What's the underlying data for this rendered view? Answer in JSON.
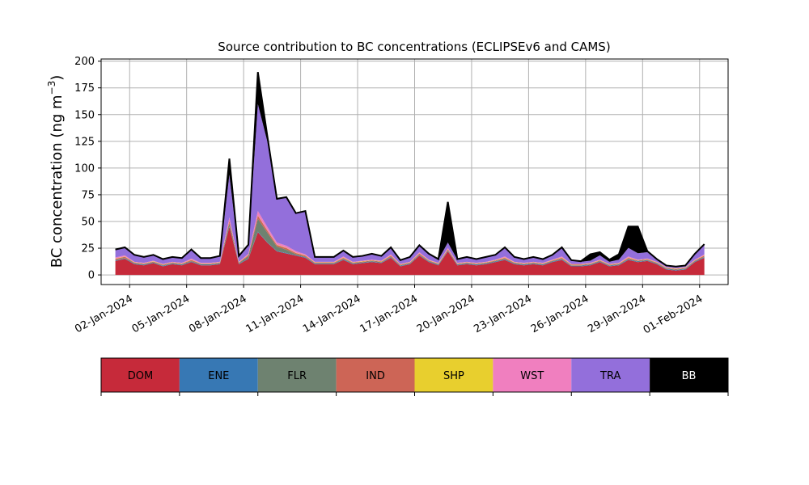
{
  "chart_data": {
    "type": "area",
    "stacked": true,
    "title": "Source contribution to BC concentrations (ECLIPSEv6 and CAMS)",
    "ylabel": "BC concentration (ng m",
    "ylabel_sup": "−3",
    "ylabel_close": ")",
    "xlabel": "",
    "ylim": [
      -9,
      202
    ],
    "xlim": [
      "2023-12-31T12:00",
      "2024-02-02T12:00"
    ],
    "grid": true,
    "yticks": [
      0,
      25,
      50,
      75,
      100,
      125,
      150,
      175,
      200
    ],
    "xticks": [
      {
        "date": "2024-01-02",
        "label": "02-Jan-2024"
      },
      {
        "date": "2024-01-05",
        "label": "05-Jan-2024"
      },
      {
        "date": "2024-01-08",
        "label": "08-Jan-2024"
      },
      {
        "date": "2024-01-11",
        "label": "11-Jan-2024"
      },
      {
        "date": "2024-01-14",
        "label": "14-Jan-2024"
      },
      {
        "date": "2024-01-17",
        "label": "17-Jan-2024"
      },
      {
        "date": "2024-01-20",
        "label": "20-Jan-2024"
      },
      {
        "date": "2024-01-23",
        "label": "23-Jan-2024"
      },
      {
        "date": "2024-01-26",
        "label": "26-Jan-2024"
      },
      {
        "date": "2024-01-29",
        "label": "29-Jan-2024"
      },
      {
        "date": "2024-02-01",
        "label": "01-Feb-2024"
      }
    ],
    "x": [
      "2024-01-01T06:00",
      "2024-01-01T18:00",
      "2024-01-02T06:00",
      "2024-01-02T18:00",
      "2024-01-03T06:00",
      "2024-01-03T18:00",
      "2024-01-04T06:00",
      "2024-01-04T18:00",
      "2024-01-05T06:00",
      "2024-01-05T18:00",
      "2024-01-06T06:00",
      "2024-01-06T18:00",
      "2024-01-07T06:00",
      "2024-01-07T18:00",
      "2024-01-08T06:00",
      "2024-01-08T18:00",
      "2024-01-09T06:00",
      "2024-01-09T18:00",
      "2024-01-10T06:00",
      "2024-01-10T18:00",
      "2024-01-11T06:00",
      "2024-01-11T18:00",
      "2024-01-12T06:00",
      "2024-01-12T18:00",
      "2024-01-13T06:00",
      "2024-01-13T18:00",
      "2024-01-14T06:00",
      "2024-01-14T18:00",
      "2024-01-15T06:00",
      "2024-01-15T18:00",
      "2024-01-16T06:00",
      "2024-01-16T18:00",
      "2024-01-17T06:00",
      "2024-01-17T18:00",
      "2024-01-18T06:00",
      "2024-01-18T18:00",
      "2024-01-19T06:00",
      "2024-01-19T18:00",
      "2024-01-20T06:00",
      "2024-01-20T18:00",
      "2024-01-21T06:00",
      "2024-01-21T18:00",
      "2024-01-22T06:00",
      "2024-01-22T18:00",
      "2024-01-23T06:00",
      "2024-01-23T18:00",
      "2024-01-24T06:00",
      "2024-01-24T18:00",
      "2024-01-25T06:00",
      "2024-01-25T18:00",
      "2024-01-26T06:00",
      "2024-01-26T18:00",
      "2024-01-27T06:00",
      "2024-01-27T18:00",
      "2024-01-28T06:00",
      "2024-01-28T18:00",
      "2024-01-29T06:00",
      "2024-01-29T18:00",
      "2024-01-30T06:00",
      "2024-01-30T18:00",
      "2024-01-31T06:00",
      "2024-01-31T18:00",
      "2024-02-01T06:00"
    ],
    "series": [
      {
        "name": "DOM",
        "color": "#c62a3a",
        "values": [
          13,
          15,
          10,
          9,
          11,
          8,
          10,
          9,
          12,
          9,
          9,
          10,
          45,
          10,
          15,
          40,
          30,
          22,
          20,
          18,
          16,
          10,
          10,
          10,
          14,
          10,
          11,
          12,
          11,
          16,
          8,
          10,
          18,
          12,
          9,
          22,
          9,
          10,
          9,
          10,
          12,
          14,
          10,
          9,
          10,
          9,
          12,
          14,
          8,
          8,
          9,
          12,
          8,
          9,
          14,
          12,
          13,
          10,
          5,
          4,
          5,
          12,
          16
        ]
      },
      {
        "name": "ENE",
        "color": "#3778b4",
        "values": [
          0.5,
          0.5,
          0.5,
          0.5,
          0.5,
          0.5,
          0.5,
          0.5,
          0.5,
          0.5,
          0.5,
          0.5,
          0.5,
          0.5,
          0.5,
          0.5,
          0.5,
          0.5,
          0.5,
          0.5,
          0.5,
          0.5,
          0.5,
          0.5,
          0.5,
          0.5,
          0.5,
          0.5,
          0.5,
          0.5,
          0.5,
          0.5,
          0.5,
          0.5,
          0.5,
          0.5,
          0.5,
          0.5,
          0.5,
          0.5,
          0.5,
          0.5,
          0.5,
          0.5,
          0.5,
          0.5,
          0.5,
          0.5,
          0.5,
          0.5,
          0.5,
          0.5,
          0.5,
          0.5,
          0.5,
          0.5,
          0.5,
          0.5,
          0.5,
          0.5,
          0.5,
          0.5,
          0.5
        ]
      },
      {
        "name": "FLR",
        "color": "#6e8270",
        "values": [
          0.5,
          0.5,
          0.5,
          0.5,
          0.5,
          0.5,
          0.5,
          0.5,
          0.5,
          0.5,
          0.5,
          0.5,
          3,
          0.5,
          2,
          12,
          9,
          4,
          3,
          1,
          0.5,
          0.5,
          0.5,
          0.5,
          0.5,
          0.5,
          0.5,
          0.5,
          0.5,
          0.5,
          0.5,
          0.5,
          0.5,
          0.5,
          0.5,
          0.5,
          0.5,
          0.5,
          0.5,
          0.5,
          0.5,
          0.5,
          0.5,
          0.5,
          0.5,
          0.5,
          0.5,
          0.5,
          0.5,
          0.5,
          0.5,
          0.5,
          0.5,
          0.5,
          0.5,
          0.5,
          0.5,
          0.5,
          0.5,
          0.5,
          0.5,
          0.5,
          0.5
        ]
      },
      {
        "name": "IND",
        "color": "#cd6556",
        "values": [
          1,
          1,
          0.5,
          0.5,
          0.5,
          0.5,
          0.5,
          0.5,
          1,
          0.5,
          0.5,
          0.5,
          2,
          0.5,
          1,
          3,
          2,
          1.5,
          1.5,
          1,
          1,
          0.5,
          0.5,
          0.5,
          1,
          0.5,
          0.5,
          0.5,
          0.5,
          1,
          0.5,
          0.5,
          1,
          0.5,
          0.5,
          1,
          0.5,
          0.5,
          0.5,
          0.5,
          0.5,
          1,
          0.5,
          0.5,
          0.5,
          0.5,
          0.5,
          1,
          0.5,
          0.5,
          0.5,
          0.5,
          0.5,
          0.5,
          1,
          0.5,
          0.5,
          0.5,
          0.5,
          0.5,
          0.5,
          0.5,
          1
        ]
      },
      {
        "name": "SHP",
        "color": "#e8cf2e",
        "values": [
          0.3,
          0.3,
          0.3,
          0.3,
          0.3,
          0.3,
          0.3,
          0.3,
          0.3,
          0.3,
          0.3,
          0.3,
          0.3,
          0.3,
          0.3,
          0.3,
          0.3,
          0.3,
          0.3,
          0.3,
          0.3,
          0.3,
          0.3,
          0.3,
          0.3,
          0.3,
          0.3,
          0.3,
          0.3,
          0.3,
          0.3,
          0.3,
          0.3,
          0.3,
          0.3,
          0.3,
          0.3,
          0.3,
          0.3,
          0.3,
          0.3,
          0.3,
          0.3,
          0.3,
          0.3,
          0.3,
          0.3,
          0.3,
          0.3,
          0.3,
          0.3,
          0.3,
          0.3,
          0.3,
          0.3,
          0.3,
          0.3,
          0.3,
          0.3,
          0.3,
          0.3,
          0.3,
          0.3
        ]
      },
      {
        "name": "WST",
        "color": "#f07fbf",
        "values": [
          1,
          1,
          0.5,
          0.5,
          0.5,
          0.5,
          0.5,
          0.5,
          1,
          0.5,
          0.5,
          0.5,
          3,
          0.5,
          1,
          4,
          3,
          2,
          2,
          1.5,
          1,
          0.5,
          0.5,
          0.5,
          1,
          0.5,
          0.5,
          0.5,
          0.5,
          1,
          0.5,
          0.5,
          1,
          0.5,
          0.5,
          1,
          0.5,
          0.5,
          0.5,
          0.5,
          0.5,
          1,
          0.5,
          0.5,
          0.5,
          0.5,
          0.5,
          1,
          0.5,
          0.5,
          0.5,
          0.5,
          0.5,
          0.5,
          1,
          0.5,
          0.5,
          0.5,
          0.5,
          0.5,
          0.5,
          0.5,
          1
        ]
      },
      {
        "name": "TRA",
        "color": "#936fdb",
        "values": [
          7,
          7,
          6,
          5,
          5,
          4,
          4,
          4,
          8,
          4,
          4,
          5,
          40,
          5,
          8,
          100,
          80,
          40,
          45,
          35,
          40,
          4,
          4,
          4,
          5,
          4,
          4,
          5,
          4,
          6,
          3,
          4,
          6,
          5,
          3,
          5,
          3,
          4,
          3,
          4,
          4,
          8,
          4,
          3,
          4,
          3,
          4,
          8,
          3,
          2,
          2,
          4,
          2,
          3,
          8,
          6,
          6,
          2,
          1,
          1,
          1,
          5,
          9
        ]
      },
      {
        "name": "BB",
        "color": "#000000",
        "values": [
          0.5,
          0.5,
          0.5,
          0.5,
          0.5,
          0.5,
          0.5,
          0.5,
          0.5,
          0.5,
          0.5,
          0.5,
          15,
          0.5,
          0.5,
          30,
          5,
          1,
          0.5,
          0.5,
          0.5,
          0.5,
          0.5,
          0.5,
          0.5,
          0.5,
          0.5,
          0.5,
          0.5,
          0.5,
          0.5,
          0.5,
          0.5,
          0.5,
          0.5,
          38,
          0.5,
          0.5,
          0.5,
          0.5,
          0.5,
          0.5,
          0.5,
          0.5,
          0.5,
          0.5,
          0.5,
          0.5,
          0.5,
          0.5,
          6,
          3,
          2,
          5,
          20,
          25,
          1,
          0.5,
          0.5,
          0.5,
          0.5,
          0.5,
          0.5
        ]
      }
    ]
  }
}
